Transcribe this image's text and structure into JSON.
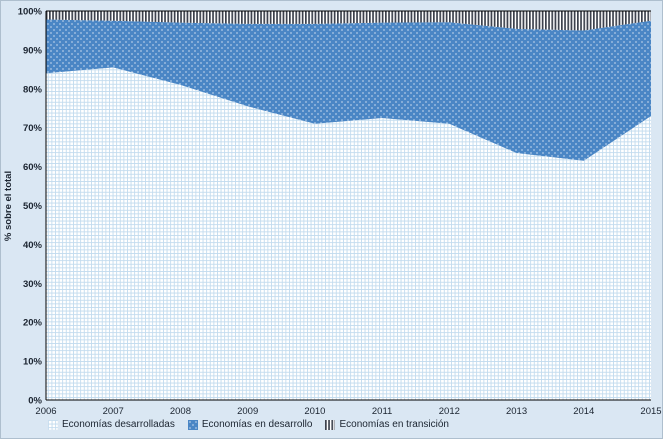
{
  "figure": {
    "background": "#dae7f3"
  },
  "chart_data": {
    "type": "area",
    "stacked": true,
    "title": "",
    "xlabel": "",
    "ylabel": "% sobre el total",
    "x": [
      2006,
      2007,
      2008,
      2009,
      2010,
      2011,
      2012,
      2013,
      2014,
      2015
    ],
    "series": [
      {
        "name": "Economías desarrolladas",
        "pattern": "grid",
        "values": [
          84,
          85.5,
          81,
          75.5,
          71,
          72.5,
          71,
          63.5,
          61.5,
          73
        ]
      },
      {
        "name": "Economías en desarrollo",
        "pattern": "dots",
        "values": [
          13.8,
          12.0,
          16.0,
          21.2,
          25.7,
          24.5,
          26.1,
          31.9,
          33.5,
          24.5
        ]
      },
      {
        "name": "Economías en transición",
        "pattern": "stripes",
        "values": [
          2.2,
          2.5,
          3.0,
          3.3,
          3.3,
          3.0,
          2.9,
          4.6,
          5.0,
          2.5
        ]
      }
    ],
    "ylim": [
      0,
      100
    ],
    "y_tick_step": 10,
    "y_tick_labels": [
      "0%",
      "10%",
      "20%",
      "30%",
      "40%",
      "50%",
      "60%",
      "70%",
      "80%",
      "90%",
      "100%"
    ],
    "grid": false,
    "legend_position": "bottom-left",
    "colors": {
      "background": "#dae7f3",
      "developing_blue": "#4a86c5",
      "dot_light": "#ffffff",
      "grid_line_blue": "#c2dbee",
      "grid_bg": "#ffffff",
      "stripe_dark": "#3d424d",
      "stripe_bg": "#ffffff",
      "axis": "#000000",
      "tick_text": "#1b2430"
    }
  }
}
